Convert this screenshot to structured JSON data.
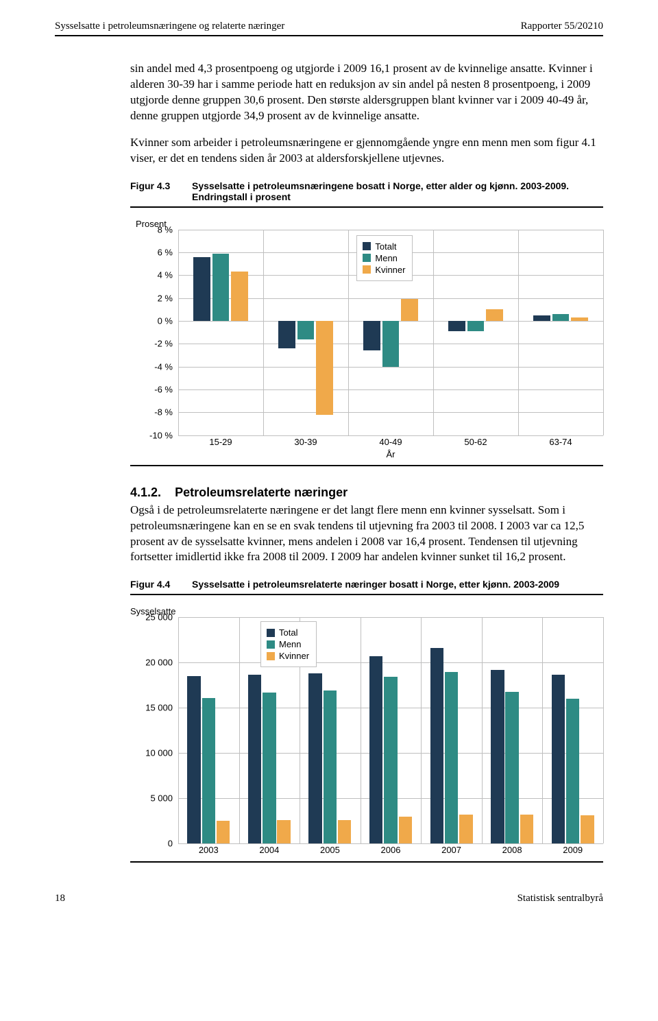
{
  "header": {
    "left": "Sysselsatte i petroleumsnæringene og relaterte næringer",
    "right": "Rapporter 55/20210"
  },
  "paragraphs": {
    "p1": "sin andel med 4,3 prosentpoeng og utgjorde i 2009 16,1 prosent av de kvinnelige ansatte. Kvinner i alderen 30-39 har i samme periode hatt en reduksjon av sin andel på nesten 8 prosentpoeng, i 2009 utgjorde denne gruppen 30,6 prosent. Den største aldersgruppen blant kvinner var i 2009 40-49 år, denne gruppen utgjorde 34,9 prosent av de kvinnelige ansatte.",
    "p2": "Kvinner som arbeider i petroleumsnæringene er gjennomgående yngre enn menn men som figur 4.1 viser, er det en tendens siden år 2003 at aldersforskjellene utjevnes.",
    "p3": "Også i de petroleumsrelaterte næringene er det langt flere menn enn kvinner sysselsatt. Som i petroleumsnæringene kan en se en svak tendens til utjevning fra 2003 til 2008. I 2003 var ca 12,5 prosent av de sysselsatte kvinner, mens andelen i 2008 var 16,4 prosent. Tendensen til utjevning fortsetter imidlertid ikke fra 2008 til 2009. I 2009 har andelen kvinner sunket til 16,2 prosent."
  },
  "section": {
    "num": "4.1.2.",
    "title": "Petroleumsrelaterte næringer"
  },
  "fig43": {
    "no": "Figur 4.3",
    "caption": "Sysselsatte i petroleumsnæringene bosatt i Norge, etter alder og kjønn. 2003-2009. Endringstall i prosent",
    "ytitle": "Prosent",
    "xaxis_title": "År",
    "colors": {
      "totalt": "#1f3a54",
      "menn": "#2e8b84",
      "kvinner": "#f0a94a",
      "grid": "#bfbfbf",
      "bg": "#ffffff"
    },
    "ymin": -10,
    "ymax": 8,
    "ystep": 2,
    "ylabels": [
      "8 %",
      "6 %",
      "4 %",
      "2 %",
      "0 %",
      "-2 %",
      "-4 %",
      "-6 %",
      "-8 %",
      "-10 %"
    ],
    "categories": [
      "15-29",
      "30-39",
      "40-49",
      "50-62",
      "63-74"
    ],
    "series": {
      "Totalt": [
        5.6,
        -2.4,
        -2.6,
        -0.9,
        0.5
      ],
      "Menn": [
        5.9,
        -1.6,
        -4.0,
        -0.9,
        0.6
      ],
      "Kvinner": [
        4.3,
        -8.2,
        1.9,
        1.0,
        0.3
      ]
    },
    "legend": [
      "Totalt",
      "Menn",
      "Kvinner"
    ]
  },
  "fig44": {
    "no": "Figur 4.4",
    "caption": "Sysselsatte i petroleumsrelaterte næringer bosatt i Norge, etter kjønn. 2003-2009",
    "ytitle": "Sysselsatte",
    "colors": {
      "total": "#1f3a54",
      "menn": "#2e8b84",
      "kvinner": "#f0a94a",
      "grid": "#bfbfbf"
    },
    "ymin": 0,
    "ymax": 25000,
    "ystep": 5000,
    "ylabels": [
      "25 000",
      "20 000",
      "15 000",
      "10 000",
      "5 000",
      "0"
    ],
    "categories": [
      "2003",
      "2004",
      "2005",
      "2006",
      "2007",
      "2008",
      "2009"
    ],
    "series": {
      "Total": [
        18500,
        18700,
        18800,
        20700,
        21600,
        19200,
        18700
      ],
      "Menn": [
        16100,
        16700,
        16900,
        18400,
        19000,
        16800,
        16000
      ],
      "Kvinner": [
        2500,
        2600,
        2600,
        3000,
        3200,
        3200,
        3100
      ]
    },
    "legend": [
      "Total",
      "Menn",
      "Kvinner"
    ]
  },
  "footer": {
    "pageno": "18",
    "right": "Statistisk sentralbyrå"
  }
}
